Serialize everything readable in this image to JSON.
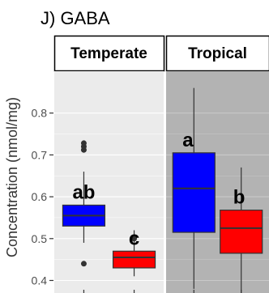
{
  "chart_data": {
    "type": "box",
    "title": "J) GABA",
    "ylabel": "Concentration (nmol/mg)",
    "xlabel": "",
    "ylim": [
      0.37,
      0.9
    ],
    "yticks": [
      0.4,
      0.5,
      0.6,
      0.7,
      0.8
    ],
    "grid": true,
    "legend": "none",
    "panels": [
      {
        "label": "Temperate",
        "background": "#ebebeb",
        "boxes": [
          {
            "fill": "#0000ff",
            "whisker_low": 0.49,
            "q1": 0.53,
            "median": 0.555,
            "q3": 0.58,
            "whisker_high": 0.66,
            "outliers": [
              0.44,
              0.712,
              0.72,
              0.728
            ],
            "letter": "ab"
          },
          {
            "fill": "#ff0000",
            "whisker_low": 0.41,
            "q1": 0.43,
            "median": 0.455,
            "q3": 0.47,
            "whisker_high": 0.52,
            "outliers": [
              0.5
            ],
            "letter": "c"
          }
        ]
      },
      {
        "label": "Tropical",
        "background": "#b3b3b3",
        "boxes": [
          {
            "fill": "#0000ff",
            "whisker_low": 0.38,
            "q1": 0.515,
            "median": 0.62,
            "q3": 0.705,
            "whisker_high": 0.86,
            "outliers": [],
            "letter": "a"
          },
          {
            "fill": "#ff0000",
            "whisker_low": 0.37,
            "q1": 0.465,
            "median": 0.525,
            "q3": 0.568,
            "whisker_high": 0.67,
            "outliers": [],
            "letter": "b"
          }
        ]
      }
    ]
  }
}
